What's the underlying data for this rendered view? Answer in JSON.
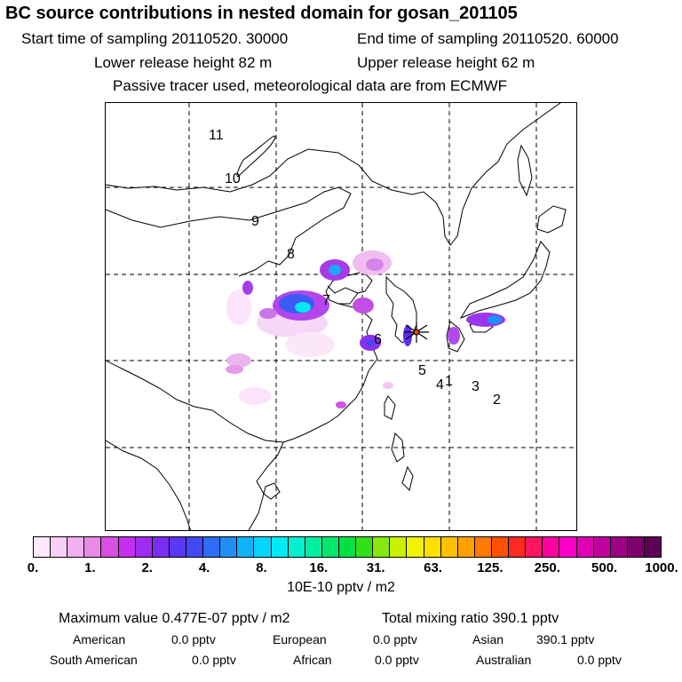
{
  "header": {
    "title": "BC  source contributions in nested domain for gosan_201105",
    "start_time": "Start time of sampling 20110520. 30000",
    "end_time": "End time of sampling 20110520. 60000",
    "lower_height": "Lower release height   82 m",
    "upper_height": "Upper release height   62 m",
    "tracer_note": "Passive tracer used, meteorological data are from ECMWF"
  },
  "map": {
    "region_labels": [
      "11",
      "10",
      "9",
      "8",
      "7",
      "6",
      "5",
      "4",
      "1",
      "3",
      "2"
    ],
    "receptor_symbol": "receptor-star"
  },
  "colorbar": {
    "tick_labels": [
      "0.",
      "1.",
      "2.",
      "4.",
      "8.",
      "16.",
      "31.",
      "63.",
      "125.",
      "250.",
      "500.",
      "1000."
    ],
    "colors": [
      "#fde8fc",
      "#f8cff6",
      "#f1b0ee",
      "#e98ae7",
      "#d84fe3",
      "#c52ef0",
      "#a02cf2",
      "#7a2ef5",
      "#5a36f5",
      "#4248f4",
      "#2e6cf5",
      "#1f8ff7",
      "#10b2fa",
      "#05d4fc",
      "#00eaf4",
      "#00f0d0",
      "#00eea2",
      "#00e870",
      "#00e043",
      "#32e01a",
      "#86e80c",
      "#c8f000",
      "#f0f400",
      "#ffe000",
      "#ffc000",
      "#ffa000",
      "#ff7a00",
      "#ff5200",
      "#ff2a20",
      "#ff1660",
      "#ff00a0",
      "#ff00c8",
      "#e000b4",
      "#c0009c",
      "#9e0086",
      "#7c006e",
      "#5c0058"
    ],
    "units": "10E-10 pptv / m2"
  },
  "stats": {
    "max_value": "Maximum value  0.477E-07 pptv / m2",
    "total_mixing": "Total mixing ratio      390.1 pptv"
  },
  "sources": {
    "american_label": "American",
    "american_value": "0.0 pptv",
    "european_label": "European",
    "european_value": "0.0 pptv",
    "asian_label": "Asian",
    "asian_value": "390.1 pptv",
    "south_american_label": "South American",
    "south_american_value": "0.0 pptv",
    "african_label": "African",
    "african_value": "0.0 pptv",
    "australian_label": "Australian",
    "australian_value": "0.0 pptv"
  }
}
